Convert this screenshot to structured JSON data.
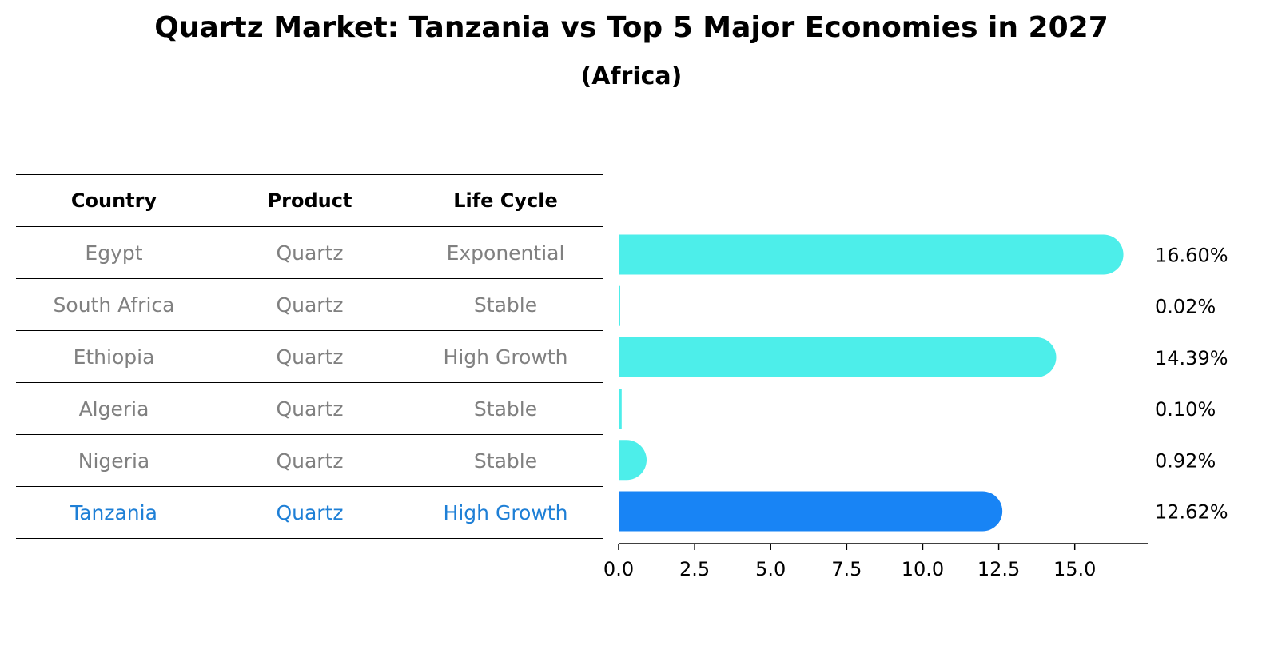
{
  "header": {
    "title": "Quartz Market: Tanzania vs Top 5 Major Economies in 2027",
    "subtitle": "(Africa)"
  },
  "table": {
    "columns": [
      "Country",
      "Product",
      "Life Cycle"
    ],
    "rows": [
      {
        "country": "Egypt",
        "product": "Quartz",
        "life_cycle": "Exponential"
      },
      {
        "country": "South Africa",
        "product": "Quartz",
        "life_cycle": "Stable"
      },
      {
        "country": "Ethiopia",
        "product": "Quartz",
        "life_cycle": "High Growth"
      },
      {
        "country": "Algeria",
        "product": "Quartz",
        "life_cycle": "Stable"
      },
      {
        "country": "Nigeria",
        "product": "Quartz",
        "life_cycle": "Stable"
      },
      {
        "country": "Tanzania",
        "product": "Quartz",
        "life_cycle": "High Growth"
      }
    ],
    "highlight_row": 5,
    "highlight_color": "#1e7fd6",
    "text_color": "#808080"
  },
  "chart_data": {
    "type": "bar",
    "orientation": "horizontal",
    "title": "Quartz Market: Tanzania vs Top 5 Major Economies in 2027",
    "subtitle": "(Africa)",
    "categories": [
      "Egypt",
      "South Africa",
      "Ethiopia",
      "Algeria",
      "Nigeria",
      "Tanzania"
    ],
    "values": [
      16.6,
      0.02,
      14.39,
      0.1,
      0.92,
      12.62
    ],
    "value_labels": [
      "16.60%",
      "0.02%",
      "14.39%",
      "0.10%",
      "0.92%",
      "12.62%"
    ],
    "xlim": [
      0,
      17.4
    ],
    "xticks": [
      0.0,
      2.5,
      5.0,
      7.5,
      10.0,
      12.5,
      15.0
    ],
    "xtick_labels": [
      "0.0",
      "2.5",
      "5.0",
      "7.5",
      "10.0",
      "12.5",
      "15.0"
    ],
    "xlabel": "",
    "ylabel": "",
    "colors": {
      "default": "#4deeea",
      "highlight": "#1884f5"
    },
    "highlight_index": 5
  }
}
